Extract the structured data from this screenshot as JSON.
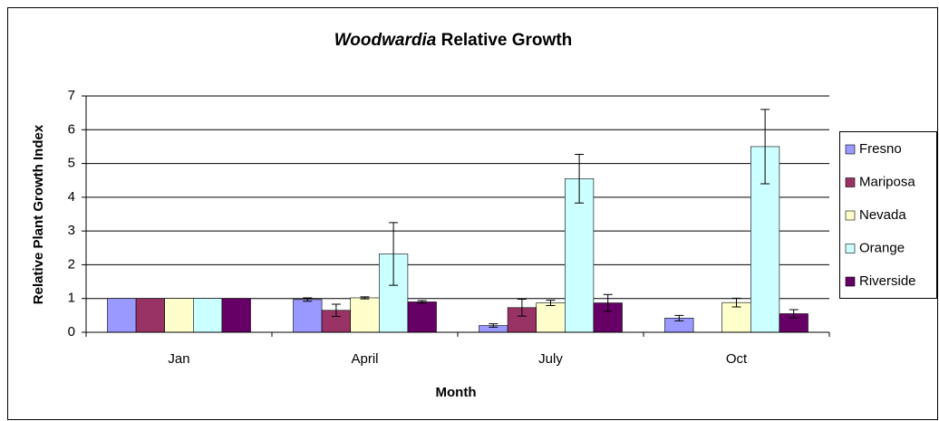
{
  "chart_data": {
    "type": "bar",
    "title": {
      "italic": "Woodwardia",
      "text": "Relative Growth"
    },
    "x_label": "Month",
    "y_label": "Relative Plant Growth Index",
    "categories": [
      "Jan",
      "April",
      "July",
      "Oct"
    ],
    "series": [
      {
        "name": "Fresno",
        "color": "#9999ff",
        "values": [
          1,
          0.97,
          0.2,
          0.42
        ],
        "errors": [
          null,
          0.05,
          0.05,
          0.08
        ]
      },
      {
        "name": "Mariposa",
        "color": "#993366",
        "values": [
          1,
          0.65,
          0.73,
          null
        ],
        "errors": [
          null,
          0.18,
          0.25,
          null
        ]
      },
      {
        "name": "Nevada",
        "color": "#ffffcc",
        "values": [
          1,
          1.02,
          0.87,
          0.88
        ],
        "errors": [
          null,
          0.03,
          0.08,
          0.13
        ]
      },
      {
        "name": "Orange",
        "color": "#ccffff",
        "values": [
          1,
          2.32,
          4.55,
          5.5
        ],
        "errors": [
          null,
          0.93,
          0.72,
          1.1
        ]
      },
      {
        "name": "Riverside",
        "color": "#660066",
        "values": [
          1,
          0.9,
          0.87,
          0.55
        ],
        "errors": [
          null,
          0.04,
          0.25,
          0.12
        ]
      }
    ],
    "ylim": [
      0,
      7
    ],
    "yticks": [
      0,
      1,
      2,
      3,
      4,
      5,
      6,
      7
    ],
    "grid": true,
    "legend": "right"
  }
}
